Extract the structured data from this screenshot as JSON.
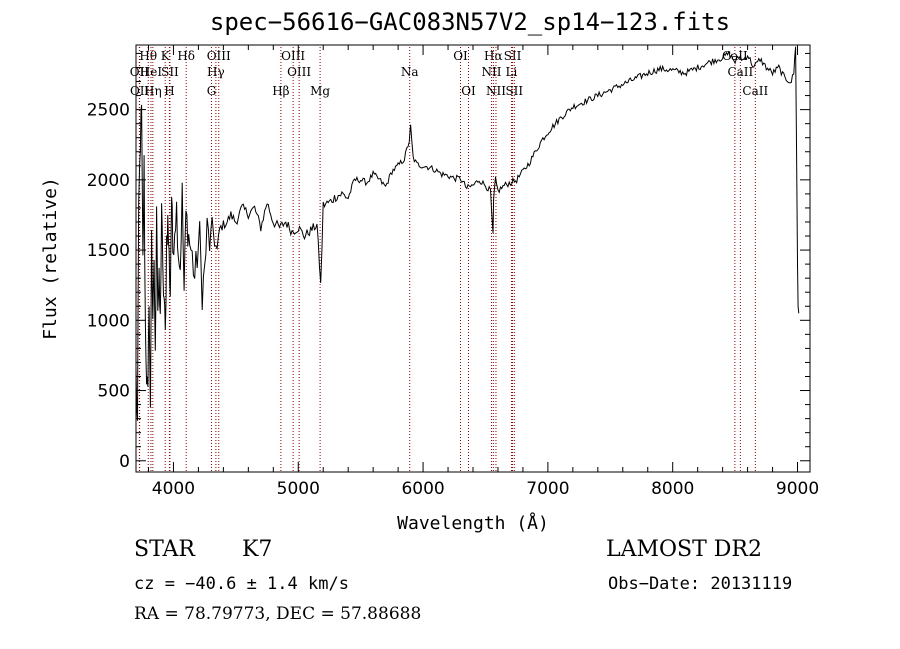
{
  "header": {
    "title": "spec−56616−GAC083N57V2_sp14−123.fits"
  },
  "info": {
    "obj_class": "STAR",
    "obj_subclass": "K7",
    "survey": "LAMOST DR2",
    "cz_text": "cz = −40.6 ± 1.4 km/s",
    "obs_date": "Obs−Date: 20131119",
    "radec": "RA =  78.79773, DEC =  57.88688"
  },
  "chart_data": {
    "type": "line",
    "title": "spec−56616−GAC083N57V2_sp14−123.fits",
    "xlabel": "Wavelength (Å)",
    "ylabel": "Flux (relative)",
    "xlim": [
      3700,
      9100
    ],
    "ylim": [
      -80,
      2960
    ],
    "x_ticks": [
      4000,
      5000,
      6000,
      7000,
      8000,
      9000
    ],
    "y_ticks": [
      0,
      500,
      1000,
      1500,
      2000,
      2500
    ],
    "x_tick_labels": [
      "4000",
      "5000",
      "6000",
      "7000",
      "8000",
      "9000"
    ],
    "y_tick_labels": [
      "0",
      "500",
      "1000",
      "1500",
      "2000",
      "2500"
    ],
    "grid": false,
    "line_color": "#000000",
    "marker_color": "#8b0000",
    "spectrum": {
      "x": [
        3700,
        3712,
        3722,
        3735,
        3745,
        3755,
        3765,
        3775,
        3785,
        3795,
        3805,
        3815,
        3825,
        3835,
        3845,
        3855,
        3865,
        3875,
        3885,
        3895,
        3905,
        3915,
        3925,
        3935,
        3945,
        3955,
        3965,
        3975,
        3985,
        3995,
        4010,
        4025,
        4040,
        4055,
        4070,
        4085,
        4100,
        4115,
        4130,
        4150,
        4170,
        4190,
        4210,
        4230,
        4250,
        4270,
        4290,
        4310,
        4330,
        4350,
        4370,
        4400,
        4430,
        4460,
        4500,
        4550,
        4600,
        4650,
        4700,
        4750,
        4800,
        4850,
        4900,
        4950,
        5000,
        5050,
        5100,
        5150,
        5180,
        5200,
        5250,
        5300,
        5350,
        5400,
        5450,
        5500,
        5550,
        5600,
        5650,
        5700,
        5750,
        5800,
        5850,
        5890,
        5900,
        5920,
        5950,
        6000,
        6050,
        6100,
        6150,
        6200,
        6250,
        6300,
        6350,
        6400,
        6450,
        6500,
        6540,
        6560,
        6565,
        6580,
        6600,
        6650,
        6700,
        6750,
        6800,
        6850,
        6900,
        6950,
        7000,
        7100,
        7200,
        7300,
        7400,
        7500,
        7600,
        7700,
        7800,
        7900,
        8000,
        8100,
        8200,
        8300,
        8400,
        8450,
        8500,
        8542,
        8560,
        8600,
        8650,
        8700,
        8750,
        8800,
        8850,
        8900,
        8950,
        8970,
        8985,
        9000,
        9005,
        9010
      ],
      "y": [
        620,
        250,
        1800,
        2300,
        2480,
        1400,
        2100,
        950,
        620,
        430,
        1200,
        320,
        1700,
        900,
        1450,
        700,
        1900,
        1100,
        1250,
        980,
        1850,
        1300,
        1150,
        880,
        1580,
        1700,
        1450,
        1200,
        1900,
        1500,
        1680,
        1800,
        1500,
        1380,
        1900,
        1200,
        1750,
        1650,
        1550,
        1450,
        1300,
        1450,
        1600,
        1200,
        1350,
        1650,
        1550,
        1700,
        1550,
        1500,
        1650,
        1680,
        1700,
        1750,
        1700,
        1800,
        1760,
        1800,
        1660,
        1840,
        1700,
        1660,
        1700,
        1630,
        1660,
        1600,
        1640,
        1680,
        1250,
        1820,
        1840,
        1880,
        1900,
        1870,
        2000,
        2000,
        1980,
        2040,
        2000,
        1950,
        2060,
        2100,
        2150,
        2280,
        2380,
        2160,
        2110,
        2100,
        2090,
        2070,
        2040,
        2030,
        2010,
        2010,
        1940,
        1960,
        2000,
        1960,
        1920,
        1600,
        1850,
        2000,
        1920,
        1960,
        1980,
        2000,
        2060,
        2120,
        2200,
        2280,
        2340,
        2440,
        2520,
        2560,
        2600,
        2640,
        2680,
        2720,
        2760,
        2790,
        2780,
        2760,
        2800,
        2840,
        2870,
        2900,
        2840,
        2880,
        2850,
        2890,
        2800,
        2860,
        2800,
        2760,
        2800,
        2720,
        2700,
        2760,
        2960,
        1400,
        1100,
        1050
      ]
    },
    "lines": [
      {
        "label": "Hθ",
        "x": 3798,
        "row": 0
      },
      {
        "label": "OII",
        "x": 3727,
        "row": 1
      },
      {
        "label": "OII",
        "x": 3729,
        "row": 2
      },
      {
        "label": "HeI",
        "x": 3820,
        "row": 1
      },
      {
        "label": "Hη",
        "x": 3835,
        "row": 2
      },
      {
        "label": "K",
        "x": 3934,
        "row": 0
      },
      {
        "label": "SII",
        "x": 3972,
        "row": 1
      },
      {
        "label": "H",
        "x": 3968,
        "row": 2
      },
      {
        "label": "Hδ",
        "x": 4102,
        "row": 0
      },
      {
        "label": "OIII",
        "x": 4363,
        "row": 0
      },
      {
        "label": "Hγ",
        "x": 4340,
        "row": 1
      },
      {
        "label": "G",
        "x": 4305,
        "row": 2
      },
      {
        "label": "Hβ",
        "x": 4861,
        "row": 2
      },
      {
        "label": "OIII",
        "x": 4959,
        "row": 0
      },
      {
        "label": "OIII",
        "x": 5007,
        "row": 1
      },
      {
        "label": "Mg",
        "x": 5175,
        "row": 2
      },
      {
        "label": "Na",
        "x": 5893,
        "row": 1
      },
      {
        "label": "OI",
        "x": 6300,
        "row": 0
      },
      {
        "label": "OI",
        "x": 6364,
        "row": 2
      },
      {
        "label": "Hα",
        "x": 6563,
        "row": 0
      },
      {
        "label": "NII",
        "x": 6548,
        "row": 1
      },
      {
        "label": "NII",
        "x": 6584,
        "row": 2
      },
      {
        "label": "SII",
        "x": 6717,
        "row": 0
      },
      {
        "label": "Li",
        "x": 6708,
        "row": 1
      },
      {
        "label": "SII",
        "x": 6731,
        "row": 2
      },
      {
        "label": "CaII",
        "x": 8498,
        "row": 0
      },
      {
        "label": "CaII",
        "x": 8542,
        "row": 1
      },
      {
        "label": "CaII",
        "x": 8662,
        "row": 2
      }
    ]
  }
}
